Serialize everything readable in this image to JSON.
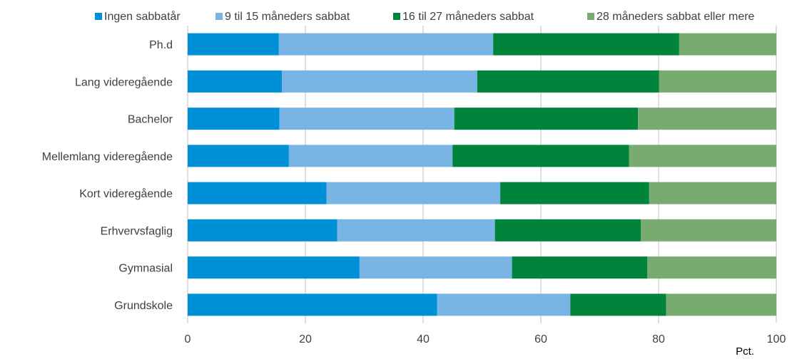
{
  "chart_data": {
    "type": "bar",
    "orientation": "horizontal",
    "stacked": true,
    "categories": [
      "Ph.d",
      "Lang videregående",
      "Bachelor",
      "Mellemlang videregående",
      "Kort videregående",
      "Erhvervsfaglig",
      "Gymnasial",
      "Grundskole"
    ],
    "series": [
      {
        "name": "Ingen sabbatår",
        "color": "#0090d8",
        "values": [
          15.5,
          16.0,
          15.6,
          17.2,
          23.6,
          25.4,
          29.2,
          42.4
        ]
      },
      {
        "name": "9 til 15 måneders sabbat",
        "color": "#78b5e4",
        "values": [
          36.4,
          33.2,
          29.7,
          27.8,
          29.5,
          26.8,
          25.9,
          22.6
        ]
      },
      {
        "name": "16 til 27 måneders sabbat",
        "color": "#00843c",
        "values": [
          31.6,
          30.9,
          31.2,
          30.0,
          25.3,
          24.8,
          23.0,
          16.3
        ]
      },
      {
        "name": "28 måneders sabbat eller mere",
        "color": "#78ab70",
        "values": [
          16.5,
          19.9,
          23.5,
          25.0,
          21.6,
          23.0,
          21.9,
          18.7
        ]
      }
    ],
    "xlim": [
      0,
      100
    ],
    "xticks": [
      "0",
      "20",
      "40",
      "60",
      "80",
      "100"
    ],
    "unit_label": "Pct.",
    "grid": "vertical",
    "legend_position": "top"
  }
}
